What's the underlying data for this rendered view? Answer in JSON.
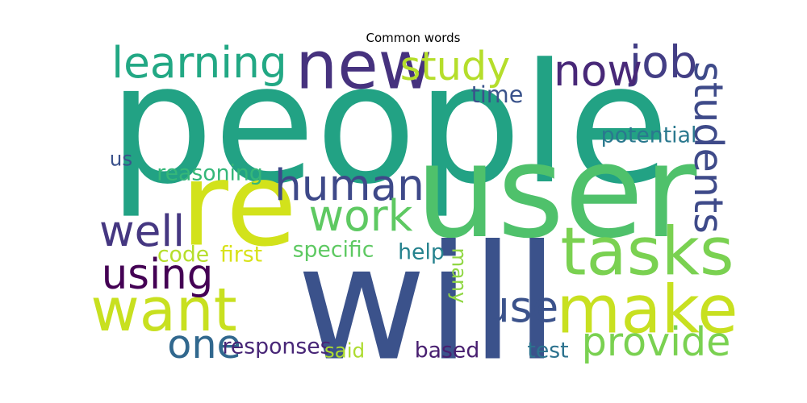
{
  "chart_data": {
    "type": "wordcloud",
    "title": "Common words",
    "words": [
      {
        "text": "people",
        "weight": 1.0,
        "color": "#22a284"
      },
      {
        "text": "user",
        "weight": 0.78,
        "color": "#4fc16b"
      },
      {
        "text": "will",
        "weight": 0.96,
        "color": "#3b528b"
      },
      {
        "text": "re",
        "weight": 0.7,
        "color": "#d2e21b"
      },
      {
        "text": "new",
        "weight": 0.4,
        "color": "#46327e"
      },
      {
        "text": "tasks",
        "weight": 0.4,
        "color": "#7ad151"
      },
      {
        "text": "make",
        "weight": 0.4,
        "color": "#c8e020"
      },
      {
        "text": "want",
        "weight": 0.36,
        "color": "#c8e020"
      },
      {
        "text": "learning",
        "weight": 0.26,
        "color": "#22a884"
      },
      {
        "text": "study",
        "weight": 0.24,
        "color": "#b5de2b"
      },
      {
        "text": "job",
        "weight": 0.27,
        "color": "#433e85"
      },
      {
        "text": "now",
        "weight": 0.26,
        "color": "#482878"
      },
      {
        "text": "students",
        "weight": 0.24,
        "color": "#3e4a89"
      },
      {
        "text": "human",
        "weight": 0.26,
        "color": "#3e4989"
      },
      {
        "text": "work",
        "weight": 0.26,
        "color": "#5ec962"
      },
      {
        "text": "well",
        "weight": 0.26,
        "color": "#453781"
      },
      {
        "text": "using",
        "weight": 0.25,
        "color": "#440154"
      },
      {
        "text": "use",
        "weight": 0.26,
        "color": "#3b528b"
      },
      {
        "text": "one",
        "weight": 0.24,
        "color": "#31688e"
      },
      {
        "text": "provide",
        "weight": 0.24,
        "color": "#7ad151"
      },
      {
        "text": "time",
        "weight": 0.14,
        "color": "#3a538b"
      },
      {
        "text": "potential",
        "weight": 0.13,
        "color": "#2a788e"
      },
      {
        "text": "us",
        "weight": 0.12,
        "color": "#3b528b"
      },
      {
        "text": "reasoning",
        "weight": 0.13,
        "color": "#35b779"
      },
      {
        "text": "specific",
        "weight": 0.13,
        "color": "#5ec962"
      },
      {
        "text": "help",
        "weight": 0.13,
        "color": "#26828e"
      },
      {
        "text": "code",
        "weight": 0.13,
        "color": "#b5de2b"
      },
      {
        "text": "first",
        "weight": 0.13,
        "color": "#d8e219"
      },
      {
        "text": "many",
        "weight": 0.12,
        "color": "#90d743"
      },
      {
        "text": "responses",
        "weight": 0.13,
        "color": "#482677"
      },
      {
        "text": "said",
        "weight": 0.12,
        "color": "#addc30"
      },
      {
        "text": "based",
        "weight": 0.13,
        "color": "#481f70"
      },
      {
        "text": "test",
        "weight": 0.13,
        "color": "#2c728e"
      }
    ]
  }
}
